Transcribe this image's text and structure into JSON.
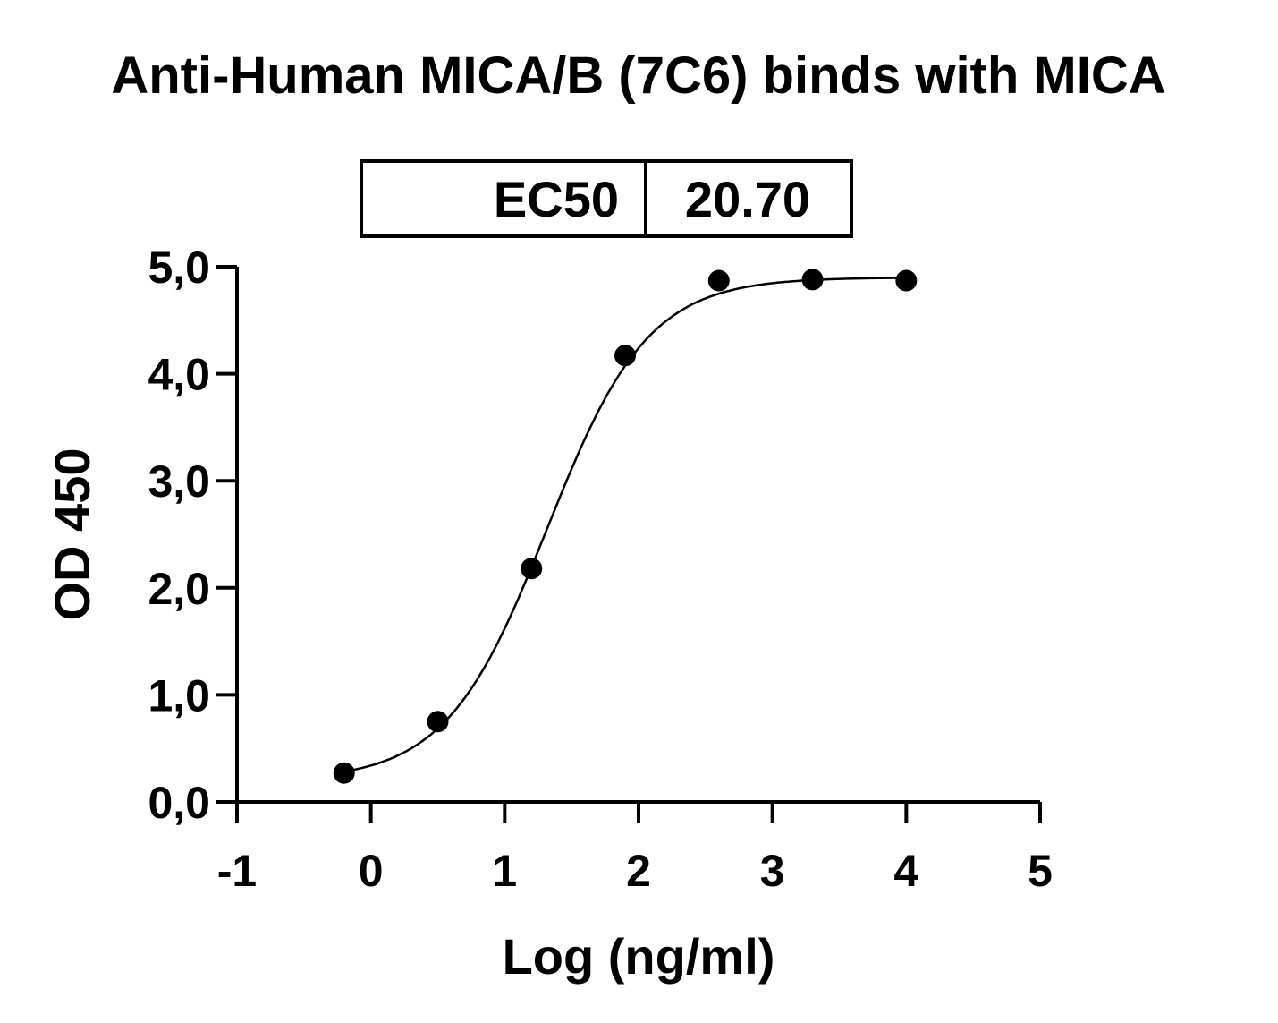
{
  "chart_data": {
    "type": "scatter",
    "title": "Anti-Human MICA/B (7C6) binds with MICA",
    "xlabel": "Log (ng/ml)",
    "ylabel": "OD 450",
    "xlim": [
      -1,
      5
    ],
    "ylim": [
      0,
      5
    ],
    "x_ticks": [
      "-1",
      "0",
      "1",
      "2",
      "3",
      "4",
      "5"
    ],
    "y_ticks": [
      "0,0",
      "1,0",
      "2,0",
      "3,0",
      "4,0",
      "5,0"
    ],
    "grid": false,
    "points": {
      "x": [
        -0.2,
        0.5,
        1.2,
        1.9,
        2.6,
        3.3,
        4.0
      ],
      "y": [
        0.27,
        0.75,
        2.18,
        4.17,
        4.87,
        4.88,
        4.87
      ]
    },
    "fit_curve": {
      "bottom": 0.2,
      "top": 4.9,
      "logEC50": 1.316,
      "hill": 1.15
    },
    "ec50_table": {
      "label": "EC50",
      "value": "20.70"
    },
    "colors": {
      "marks": "#000000",
      "background": "#ffffff"
    }
  }
}
